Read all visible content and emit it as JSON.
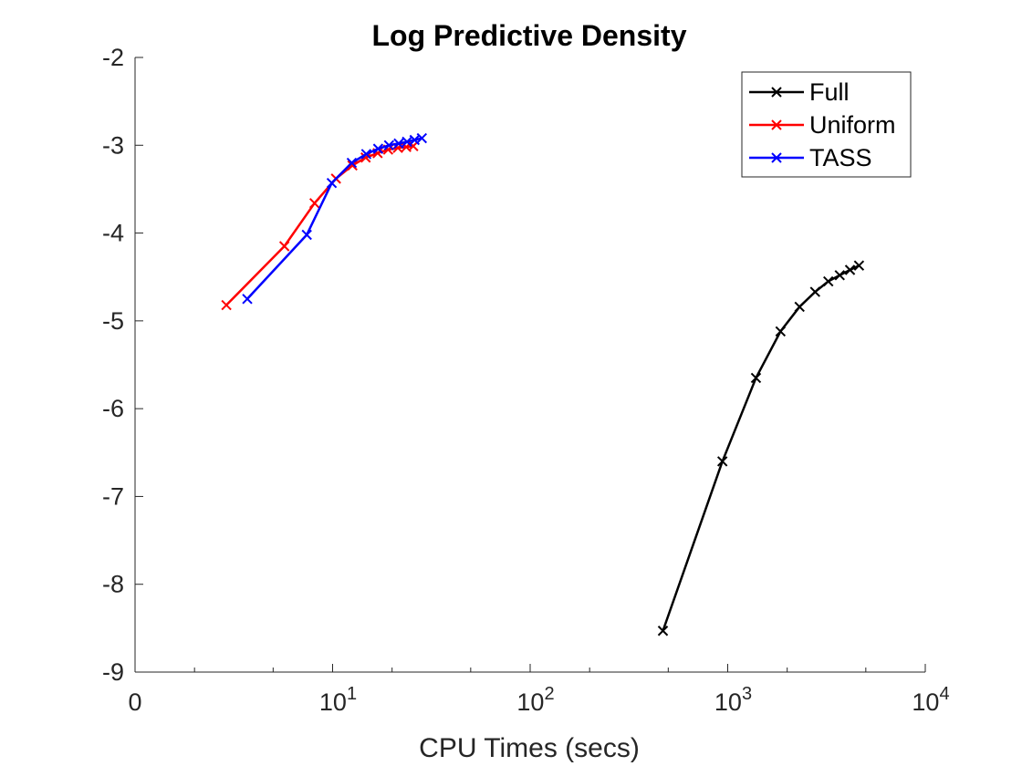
{
  "chart_data": {
    "type": "line",
    "title": "Log Predictive Density",
    "xlabel": "CPU Times (secs)",
    "ylabel": "",
    "x_scale": "log",
    "xlim": [
      0,
      10000
    ],
    "ylim": [
      -9,
      -2
    ],
    "x_ticks": [
      {
        "value": 0,
        "base": "0",
        "exp": ""
      },
      {
        "value": 10,
        "base": "10",
        "exp": "1"
      },
      {
        "value": 100,
        "base": "10",
        "exp": "2"
      },
      {
        "value": 1000,
        "base": "10",
        "exp": "3"
      },
      {
        "value": 10000,
        "base": "10",
        "exp": "4"
      }
    ],
    "y_ticks": [
      -9,
      -8,
      -7,
      -6,
      -5,
      -4,
      -3,
      -2
    ],
    "y_tick_labels": [
      "-9",
      "-8",
      "-7",
      "-6",
      "-5",
      "-4",
      "-3",
      "-2"
    ],
    "grid": false,
    "legend_position": "top-right",
    "series": [
      {
        "name": "Full",
        "color": "#000000",
        "marker": "x",
        "x": [
          470,
          940,
          1390,
          1850,
          2310,
          2770,
          3230,
          3690,
          4160,
          4620
        ],
        "y": [
          -8.53,
          -6.6,
          -5.65,
          -5.12,
          -4.84,
          -4.67,
          -4.55,
          -4.48,
          -4.42,
          -4.37
        ]
      },
      {
        "name": "Uniform",
        "color": "#ff0000",
        "marker": "x",
        "x": [
          2.9,
          5.7,
          8.1,
          10.4,
          12.6,
          14.7,
          16.9,
          19.1,
          21.4,
          23.6,
          25.6
        ],
        "y": [
          -4.82,
          -4.15,
          -3.66,
          -3.38,
          -3.23,
          -3.14,
          -3.09,
          -3.05,
          -3.03,
          -3.02,
          -3.01
        ]
      },
      {
        "name": "TASS",
        "color": "#0000ff",
        "marker": "x",
        "x": [
          3.7,
          7.4,
          9.9,
          12.5,
          14.8,
          17.0,
          19.3,
          21.6,
          23.8,
          26.0,
          28.3
        ],
        "y": [
          -4.75,
          -4.02,
          -3.43,
          -3.2,
          -3.1,
          -3.04,
          -3.0,
          -2.98,
          -2.96,
          -2.94,
          -2.92
        ]
      }
    ]
  }
}
